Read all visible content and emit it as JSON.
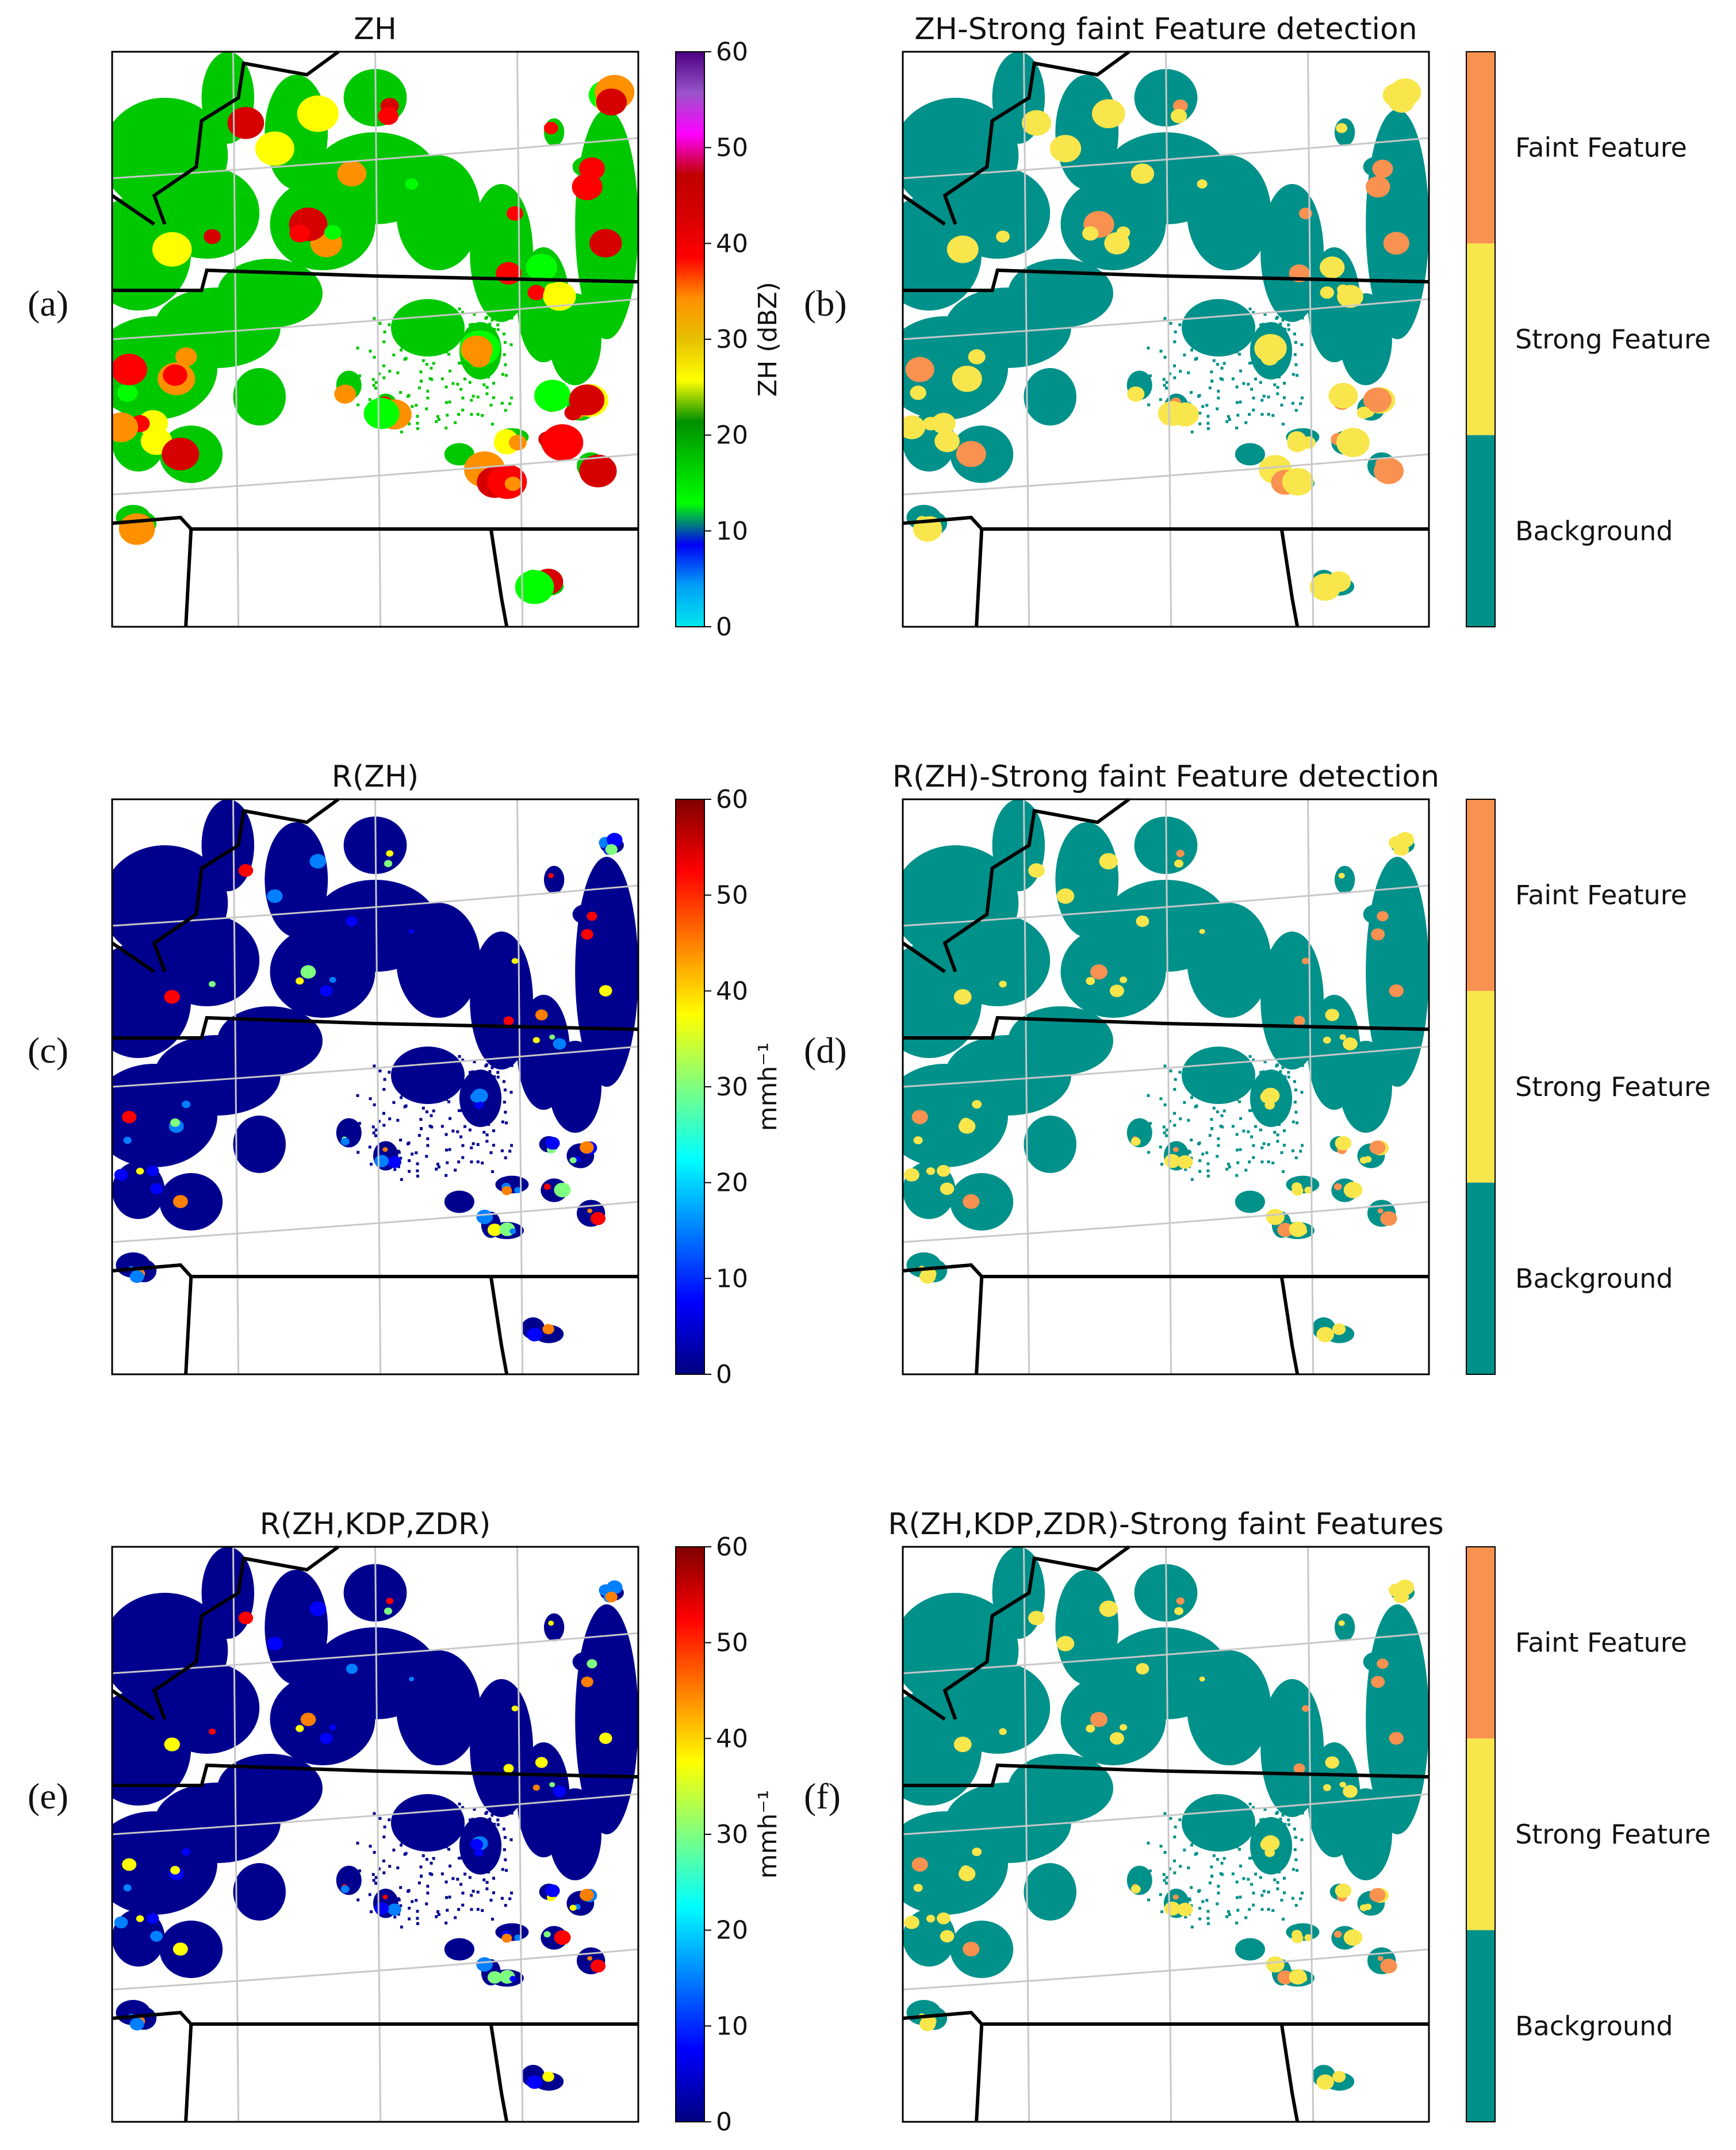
{
  "figure": {
    "panel_labels": [
      "(a)",
      "(b)",
      "(c)",
      "(d)",
      "(e)",
      "(f)"
    ]
  },
  "chart_data": [
    {
      "id": "a",
      "type": "heatmap",
      "title": "ZH",
      "colorbar": {
        "label": "ZH (dBZ)",
        "label_html": "ZH (dBZ)",
        "range": [
          0,
          60
        ],
        "ticks": [
          "0",
          "10",
          "20",
          "30",
          "40",
          "50",
          "60"
        ],
        "colormap": "NWSRef"
      }
    },
    {
      "id": "b",
      "type": "heatmap",
      "title": "ZH-Strong faint Feature detection",
      "categories": [
        "Faint Feature",
        "Strong Feature",
        "Background"
      ],
      "category_colors": [
        "#f99150",
        "#f9e64c",
        "#00918a"
      ]
    },
    {
      "id": "c",
      "type": "heatmap",
      "title": "R(ZH)",
      "colorbar": {
        "label": "mmh⁻¹",
        "range": [
          0,
          60
        ],
        "ticks": [
          "0",
          "10",
          "20",
          "30",
          "40",
          "50",
          "60"
        ],
        "colormap": "jet"
      }
    },
    {
      "id": "d",
      "type": "heatmap",
      "title": "R(ZH)-Strong faint Feature detection",
      "categories": [
        "Faint Feature",
        "Strong Feature",
        "Background"
      ],
      "category_colors": [
        "#f99150",
        "#f9e64c",
        "#00918a"
      ]
    },
    {
      "id": "e",
      "type": "heatmap",
      "title": "R(ZH,KDP,ZDR)",
      "colorbar": {
        "label": "mmh⁻¹",
        "range": [
          0,
          60
        ],
        "ticks": [
          "0",
          "10",
          "20",
          "30",
          "40",
          "50",
          "60"
        ],
        "colormap": "jet"
      }
    },
    {
      "id": "f",
      "type": "heatmap",
      "title": "R(ZH,KDP,ZDR)-Strong faint Features",
      "categories": [
        "Faint Feature",
        "Strong Feature",
        "Background"
      ],
      "category_colors": [
        "#f99150",
        "#f9e64c",
        "#00918a"
      ]
    }
  ],
  "palette": {
    "reflectivity": [
      "#00e8ee",
      "#01a0f6",
      "#0000f6",
      "#00ff00",
      "#00c800",
      "#009000",
      "#ffff00",
      "#e7c000",
      "#ff9000",
      "#ff0000",
      "#d60000",
      "#c00000",
      "#ff00ff",
      "#9955c9",
      "#4b0082"
    ],
    "jet": [
      "#00007f",
      "#0000ff",
      "#007fff",
      "#00ffff",
      "#7fff7f",
      "#ffff00",
      "#ff7f00",
      "#ff0000",
      "#7f0000"
    ],
    "feature": {
      "background": "#00918a",
      "strong": "#f9e64c",
      "faint": "#f99150"
    },
    "grid": "#c8c8c8",
    "border": "#000000"
  }
}
